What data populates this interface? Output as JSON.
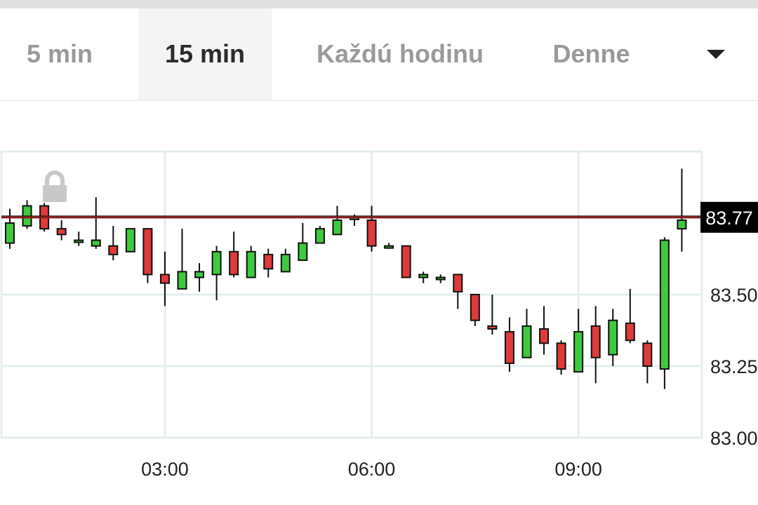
{
  "tabs": {
    "items": [
      {
        "label": "5 min"
      },
      {
        "label": "15 min"
      },
      {
        "label": "Každú hodinu"
      },
      {
        "label": "Denne"
      }
    ],
    "active_index": 1,
    "dropdown_icon": "chevron-down-icon"
  },
  "chart_data": {
    "type": "candlestick",
    "x_ticks": [
      "03:00",
      "06:00",
      "09:00"
    ],
    "y_ticks": [
      "83.00",
      "83.25",
      "83.50"
    ],
    "ylim": [
      83.0,
      84.0
    ],
    "current_price": 83.77,
    "current_price_label": "83.77",
    "lock_icon": "lock-icon",
    "colors": {
      "up": "#3ec93e",
      "down": "#e03a3a",
      "price_line": "#8a1d1d"
    },
    "candles": [
      {
        "open": 83.68,
        "high": 83.8,
        "low": 83.66,
        "close": 83.75
      },
      {
        "open": 83.74,
        "high": 83.83,
        "low": 83.73,
        "close": 83.81
      },
      {
        "open": 83.81,
        "high": 83.82,
        "low": 83.72,
        "close": 83.73
      },
      {
        "open": 83.73,
        "high": 83.76,
        "low": 83.69,
        "close": 83.71
      },
      {
        "open": 83.69,
        "high": 83.72,
        "low": 83.67,
        "close": 83.69
      },
      {
        "open": 83.67,
        "high": 83.84,
        "low": 83.66,
        "close": 83.69
      },
      {
        "open": 83.67,
        "high": 83.74,
        "low": 83.62,
        "close": 83.64
      },
      {
        "open": 83.65,
        "high": 83.73,
        "low": 83.65,
        "close": 83.73
      },
      {
        "open": 83.73,
        "high": 83.73,
        "low": 83.54,
        "close": 83.57
      },
      {
        "open": 83.57,
        "high": 83.65,
        "low": 83.46,
        "close": 83.54
      },
      {
        "open": 83.52,
        "high": 83.73,
        "low": 83.52,
        "close": 83.58
      },
      {
        "open": 83.56,
        "high": 83.61,
        "low": 83.51,
        "close": 83.58
      },
      {
        "open": 83.57,
        "high": 83.67,
        "low": 83.48,
        "close": 83.65
      },
      {
        "open": 83.65,
        "high": 83.72,
        "low": 83.56,
        "close": 83.57
      },
      {
        "open": 83.56,
        "high": 83.67,
        "low": 83.56,
        "close": 83.65
      },
      {
        "open": 83.64,
        "high": 83.66,
        "low": 83.56,
        "close": 83.59
      },
      {
        "open": 83.58,
        "high": 83.66,
        "low": 83.58,
        "close": 83.64
      },
      {
        "open": 83.62,
        "high": 83.75,
        "low": 83.62,
        "close": 83.68
      },
      {
        "open": 83.68,
        "high": 83.74,
        "low": 83.68,
        "close": 83.73
      },
      {
        "open": 83.71,
        "high": 83.81,
        "low": 83.71,
        "close": 83.76
      },
      {
        "open": 83.77,
        "high": 83.78,
        "low": 83.74,
        "close": 83.77
      },
      {
        "open": 83.76,
        "high": 83.81,
        "low": 83.65,
        "close": 83.67
      },
      {
        "open": 83.67,
        "high": 83.68,
        "low": 83.66,
        "close": 83.67
      },
      {
        "open": 83.67,
        "high": 83.67,
        "low": 83.56,
        "close": 83.56
      },
      {
        "open": 83.56,
        "high": 83.58,
        "low": 83.54,
        "close": 83.57
      },
      {
        "open": 83.56,
        "high": 83.57,
        "low": 83.54,
        "close": 83.56
      },
      {
        "open": 83.57,
        "high": 83.57,
        "low": 83.45,
        "close": 83.51
      },
      {
        "open": 83.5,
        "high": 83.5,
        "low": 83.39,
        "close": 83.41
      },
      {
        "open": 83.39,
        "high": 83.5,
        "low": 83.36,
        "close": 83.38
      },
      {
        "open": 83.37,
        "high": 83.42,
        "low": 83.23,
        "close": 83.26
      },
      {
        "open": 83.28,
        "high": 83.45,
        "low": 83.28,
        "close": 83.39
      },
      {
        "open": 83.38,
        "high": 83.46,
        "low": 83.29,
        "close": 83.33
      },
      {
        "open": 83.33,
        "high": 83.34,
        "low": 83.22,
        "close": 83.24
      },
      {
        "open": 83.23,
        "high": 83.45,
        "low": 83.23,
        "close": 83.37
      },
      {
        "open": 83.39,
        "high": 83.46,
        "low": 83.19,
        "close": 83.28
      },
      {
        "open": 83.29,
        "high": 83.45,
        "low": 83.25,
        "close": 83.41
      },
      {
        "open": 83.4,
        "high": 83.52,
        "low": 83.33,
        "close": 83.34
      },
      {
        "open": 83.33,
        "high": 83.34,
        "low": 83.19,
        "close": 83.25
      },
      {
        "open": 83.24,
        "high": 83.7,
        "low": 83.17,
        "close": 83.69
      },
      {
        "open": 83.73,
        "high": 83.94,
        "low": 83.65,
        "close": 83.76
      }
    ]
  }
}
